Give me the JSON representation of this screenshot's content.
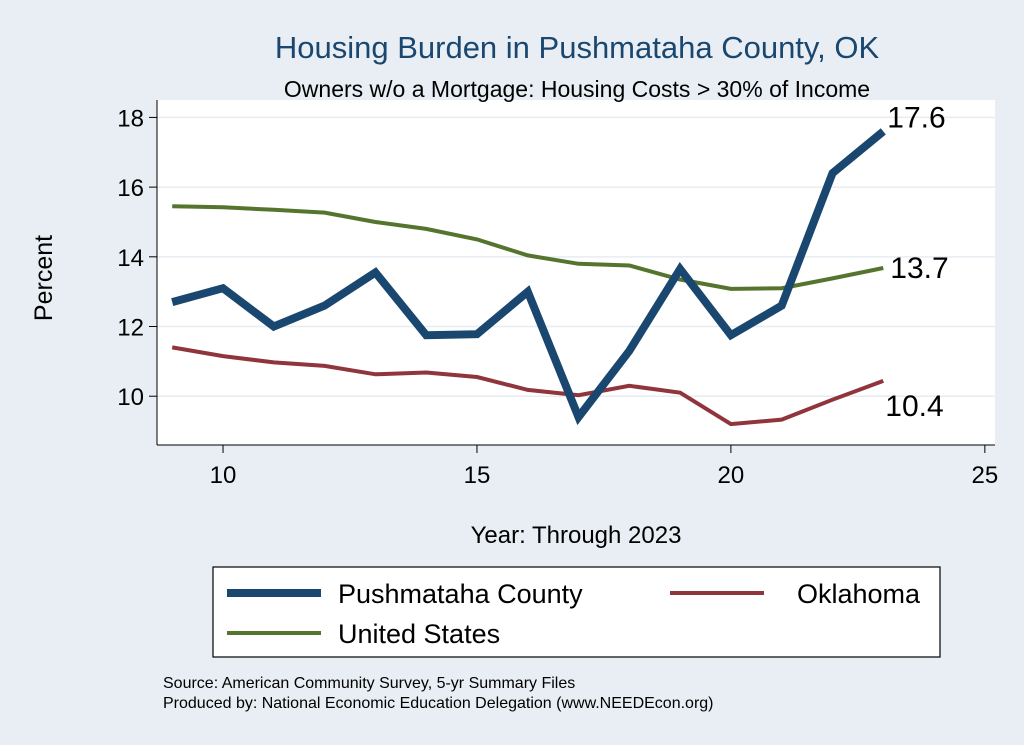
{
  "chart_data": {
    "type": "line",
    "title": "Housing Burden in Pushmataha County, OK",
    "subtitle": "Owners w/o a Mortgage: Housing Costs > 30% of Income",
    "xlabel": "Year: Through 2023",
    "ylabel": "Percent",
    "xlim": [
      8.7,
      25.2
    ],
    "ylim": [
      8.6,
      18.5
    ],
    "x_ticks": [
      10,
      15,
      20,
      25
    ],
    "y_ticks": [
      10,
      12,
      14,
      16,
      18
    ],
    "grid": "horizontal",
    "legend_position": "bottom",
    "x": [
      9,
      10,
      11,
      12,
      13,
      14,
      15,
      16,
      17,
      18,
      19,
      20,
      21,
      22,
      23
    ],
    "series": [
      {
        "name": "Pushmataha County",
        "color": "#1a476f",
        "values": [
          12.7,
          13.1,
          12.0,
          12.6,
          13.55,
          11.75,
          11.78,
          13.0,
          9.4,
          11.3,
          13.65,
          11.75,
          12.6,
          16.4,
          17.6
        ],
        "end_label": "17.6"
      },
      {
        "name": "Oklahoma",
        "color": "#90353b",
        "values": [
          11.4,
          11.15,
          10.97,
          10.87,
          10.63,
          10.68,
          10.55,
          10.18,
          10.03,
          10.3,
          10.1,
          9.2,
          9.33,
          9.9,
          10.44
        ],
        "end_label": "10.4"
      },
      {
        "name": "United States",
        "color": "#55752f",
        "values": [
          15.45,
          15.42,
          15.35,
          15.27,
          15.0,
          14.8,
          14.5,
          14.04,
          13.8,
          13.75,
          13.35,
          13.08,
          13.1,
          13.38,
          13.68
        ],
        "end_label": "13.7"
      }
    ]
  },
  "source_line": "Source: American Community Survey, 5-yr Summary Files",
  "produced_line": "Produced by: National Economic Education Delegation (www.NEEDEcon.org)"
}
